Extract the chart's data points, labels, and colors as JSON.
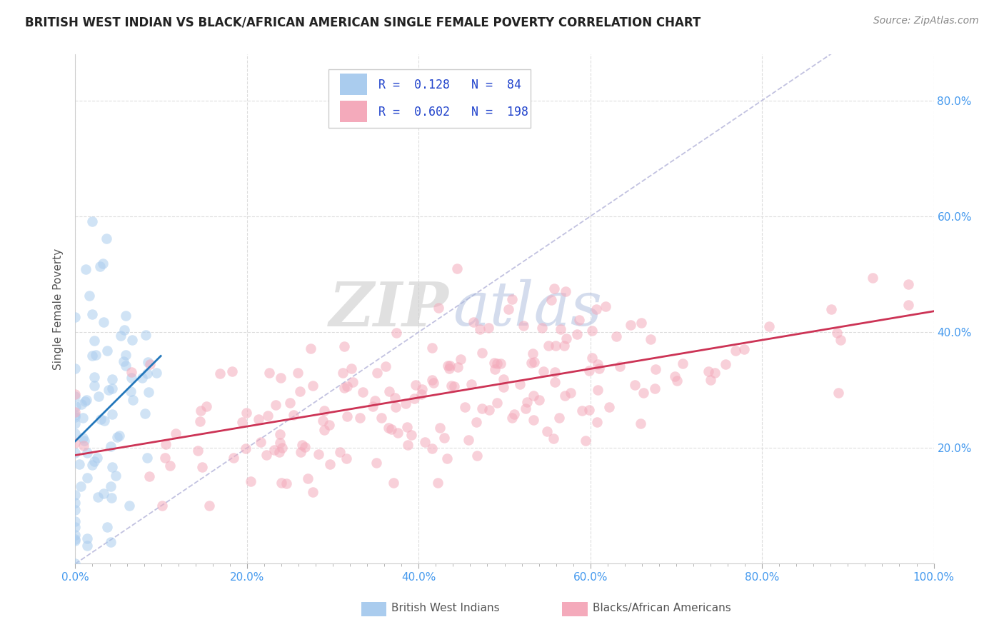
{
  "title": "BRITISH WEST INDIAN VS BLACK/AFRICAN AMERICAN SINGLE FEMALE POVERTY CORRELATION CHART",
  "source": "Source: ZipAtlas.com",
  "ylabel": "Single Female Poverty",
  "xlim": [
    0,
    1.0
  ],
  "ylim": [
    0,
    0.88
  ],
  "xtick_labels": [
    "0.0%",
    "",
    "",
    "",
    "",
    "",
    "",
    "",
    "",
    "",
    "20.0%",
    "",
    "",
    "",
    "",
    "",
    "",
    "",
    "",
    "",
    "40.0%",
    "",
    "",
    "",
    "",
    "",
    "",
    "",
    "",
    "",
    "60.0%",
    "",
    "",
    "",
    "",
    "",
    "",
    "",
    "",
    "",
    "80.0%",
    "",
    "",
    "",
    "",
    "",
    "",
    "",
    "",
    "",
    "100.0%"
  ],
  "xtick_major_values": [
    0.0,
    0.2,
    0.4,
    0.6,
    0.8,
    1.0
  ],
  "xtick_major_labels": [
    "0.0%",
    "20.0%",
    "40.0%",
    "60.0%",
    "80.0%",
    "100.0%"
  ],
  "ytick_major_values": [
    0.2,
    0.4,
    0.6,
    0.8
  ],
  "ytick_major_labels": [
    "20.0%",
    "40.0%",
    "60.0%",
    "80.0%"
  ],
  "legend_R1": "0.128",
  "legend_N1": "84",
  "legend_R2": "0.602",
  "legend_N2": "198",
  "legend_label1": "British West Indians",
  "legend_label2": "Blacks/African Americans",
  "blue_scatter_color": "#aaccee",
  "pink_scatter_color": "#f4aabb",
  "blue_line_color": "#2277bb",
  "pink_line_color": "#cc3355",
  "diagonal_color": "#bbbbdd",
  "watermark_zip": "#bbccee",
  "watermark_atlas": "#99bbdd",
  "title_color": "#222222",
  "source_color": "#888888",
  "axis_label_color": "#555555",
  "tick_color": "#4499ee",
  "grid_color": "#dddddd",
  "background_color": "#ffffff",
  "legend_R_N_color": "#2244cc",
  "seed": 42,
  "bwi_n": 84,
  "baa_n": 198,
  "bwi_r": 0.128,
  "baa_r": 0.602
}
